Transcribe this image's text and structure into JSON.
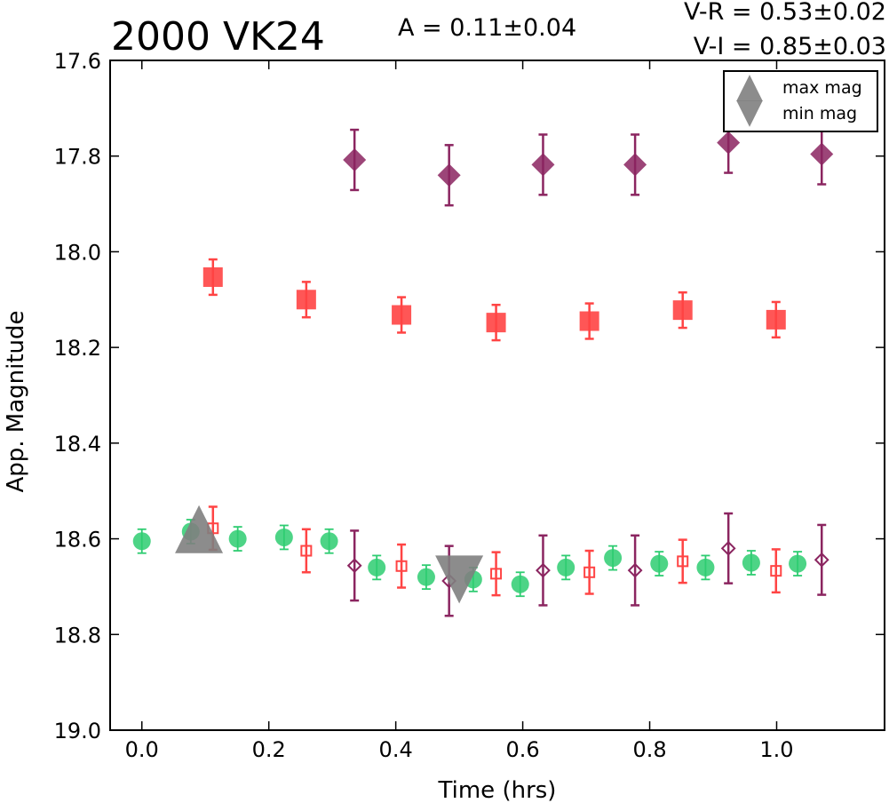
{
  "chart_data": {
    "type": "scatter",
    "title": "2000 VK24",
    "amplitude_label": "A  = 0.11±0.04",
    "color_indices": [
      "V-R = 0.53±0.02",
      "V-I  = 0.85±0.03"
    ],
    "xlabel": "Time (hrs)",
    "ylabel": "App. Magnitude",
    "xlim": [
      -0.05,
      1.17
    ],
    "ylim": [
      19.0,
      17.6
    ],
    "y_inverted": true,
    "xticks": [
      "0.0",
      "0.2",
      "0.4",
      "0.6",
      "0.8",
      "1.0"
    ],
    "yticks": [
      "17.6",
      "17.8",
      "18.0",
      "18.2",
      "18.4",
      "18.6",
      "18.8",
      "19.0"
    ],
    "grid": false,
    "legend_position": "top-right",
    "legend": [
      {
        "label": "max mag",
        "marker": "triangle-up"
      },
      {
        "label": "min mag",
        "marker": "triangle-down"
      }
    ],
    "series": [
      {
        "marker": "circle",
        "color": "#2ecc71",
        "x": [
          0.0,
          0.077,
          0.151,
          0.224,
          0.295,
          0.37,
          0.448,
          0.522,
          0.596,
          0.668,
          0.742,
          0.815,
          0.888,
          0.96,
          1.033
        ],
        "y": [
          18.605,
          18.585,
          18.6,
          18.597,
          18.605,
          18.66,
          18.68,
          18.685,
          18.695,
          18.66,
          18.64,
          18.652,
          18.66,
          18.65,
          18.652
        ],
        "err": [
          0.025,
          0.025,
          0.025,
          0.025,
          0.025,
          0.025,
          0.025,
          0.025,
          0.025,
          0.025,
          0.025,
          0.025,
          0.025,
          0.025,
          0.025
        ]
      },
      {
        "marker": "square",
        "color": "#ff4444",
        "x": [
          0.112,
          0.259,
          0.409,
          0.558,
          0.705,
          0.852,
          0.999
        ],
        "y": [
          18.053,
          18.1,
          18.132,
          18.148,
          18.145,
          18.122,
          18.142
        ],
        "err": [
          0.037,
          0.037,
          0.037,
          0.037,
          0.037,
          0.037,
          0.037
        ]
      },
      {
        "marker": "square-open",
        "color": "#ff4444",
        "x": [
          0.112,
          0.259,
          0.409,
          0.558,
          0.705,
          0.852,
          0.999
        ],
        "y": [
          18.578,
          18.625,
          18.657,
          18.673,
          18.67,
          18.647,
          18.667
        ],
        "err": [
          0.045,
          0.045,
          0.045,
          0.045,
          0.045,
          0.045,
          0.045
        ]
      },
      {
        "marker": "diamond",
        "color": "#8b2560",
        "x": [
          0.335,
          0.484,
          0.632,
          0.777,
          0.924,
          1.071
        ],
        "y": [
          17.808,
          17.84,
          17.818,
          17.818,
          17.772,
          17.796
        ],
        "err": [
          0.063,
          0.063,
          0.063,
          0.063,
          0.063,
          0.063
        ]
      },
      {
        "marker": "diamond-open",
        "color": "#8b2560",
        "x": [
          0.335,
          0.484,
          0.632,
          0.777,
          0.924,
          1.071
        ],
        "y": [
          18.656,
          18.688,
          18.666,
          18.666,
          18.62,
          18.644
        ],
        "err": [
          0.073,
          0.073,
          0.073,
          0.073,
          0.073,
          0.073
        ]
      }
    ],
    "extrema": [
      {
        "type": "max",
        "marker": "triangle-up",
        "color": "#808080",
        "x": 0.09,
        "y": 18.58
      },
      {
        "type": "min",
        "marker": "triangle-down",
        "color": "#808080",
        "x": 0.5,
        "y": 18.685
      }
    ]
  }
}
